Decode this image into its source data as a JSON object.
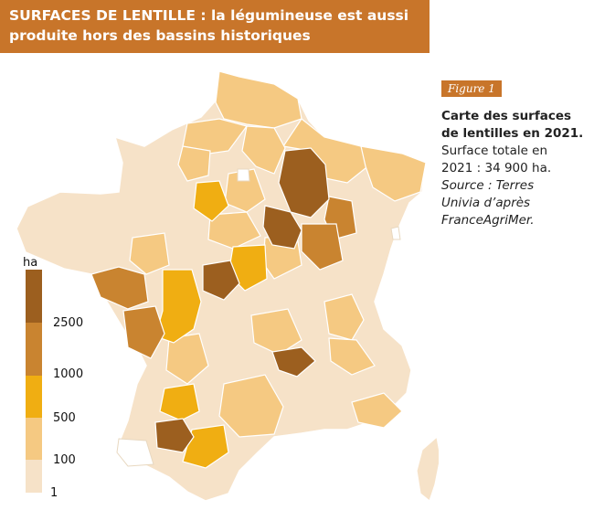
{
  "header": {
    "title_line1": "SURFACES DE LENTILLE : la légumineuse est aussi",
    "title_line2": "produite hors des bassins historiques"
  },
  "figure": {
    "tag": "Figure 1",
    "title_line1": "Carte des surfaces",
    "title_line2": "de lentilles en 2021.",
    "text_line1": "Surface totale en",
    "text_line2": "2021 : 34 900 ha.",
    "source_line1": "Source : Terres",
    "source_line2": "Univia d’après",
    "source_line3": "FranceAgriMer."
  },
  "legend": {
    "unit": "ha",
    "breaks": [
      "2500",
      "1000",
      "500",
      "100",
      "1"
    ],
    "classes": [
      {
        "range": "≥ 2500",
        "color": "#9c5f1f"
      },
      {
        "range": "1000–2500",
        "color": "#c98430"
      },
      {
        "range": "500–1000",
        "color": "#f0ae12"
      },
      {
        "range": "100–500",
        "color": "#f5c982"
      },
      {
        "range": "1–100",
        "color": "#f6e2c8"
      }
    ],
    "no_data_color": "#ffffff"
  }
}
